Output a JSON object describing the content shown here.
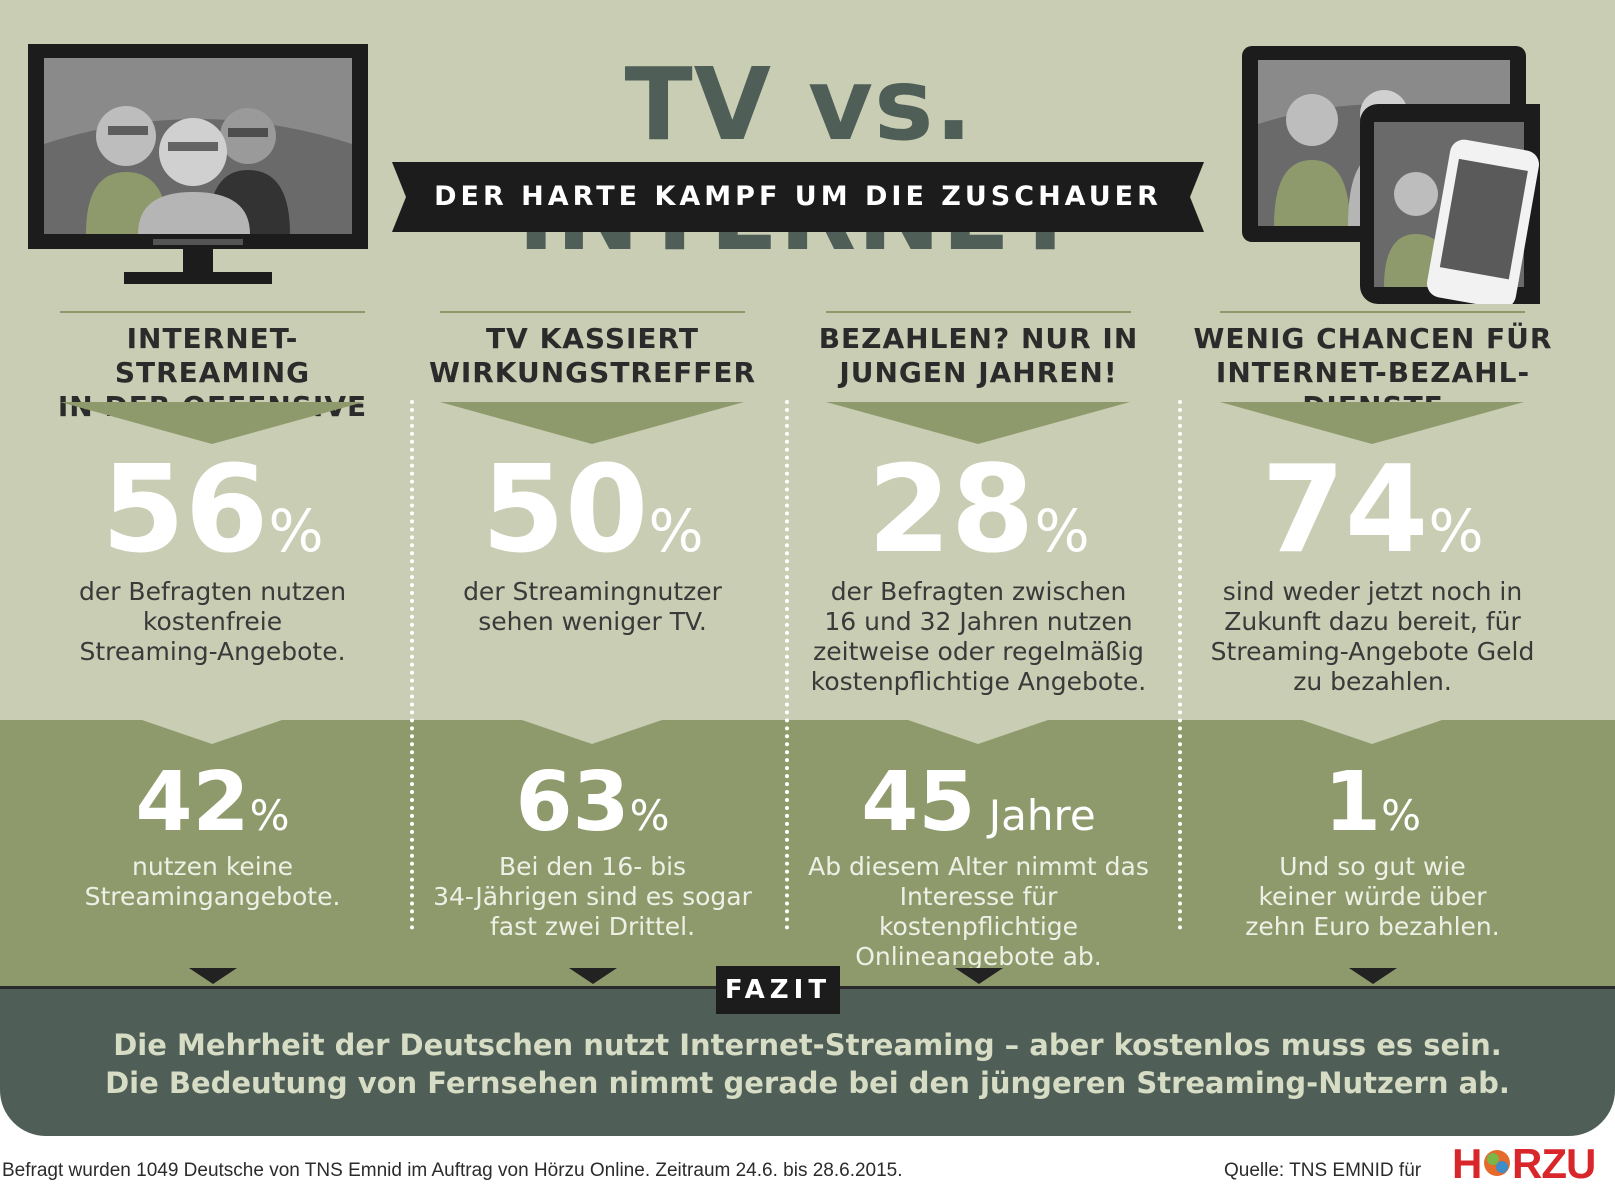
{
  "header": {
    "title": "TV vs. INTERNET",
    "subtitle": "DER HARTE KAMPF UM DIE ZUSCHAUER"
  },
  "columns": [
    {
      "heading": "INTERNET-STREAMING\nIN DER OFFENSIVE",
      "stat_value": "56",
      "stat_unit": "%",
      "stat_desc": "der Befragten nutzen\nkostenfreie\nStreaming-Angebote.",
      "sub_value": "42",
      "sub_unit": "%",
      "sub_desc": "nutzen keine\nStreamingangebote."
    },
    {
      "heading": "TV KASSIERT\nWIRKUNGSTREFFER",
      "stat_value": "50",
      "stat_unit": "%",
      "stat_desc": "der Streamingnutzer\nsehen weniger TV.",
      "sub_value": "63",
      "sub_unit": "%",
      "sub_desc": "Bei den 16- bis\n34-Jährigen sind es sogar\nfast zwei Drittel."
    },
    {
      "heading": "BEZAHLEN? NUR IN\nJUNGEN JAHREN!",
      "stat_value": "28",
      "stat_unit": "%",
      "stat_desc": "der Befragten zwischen\n16 und 32 Jahren nutzen\nzeitweise oder regelmäßig\nkostenpflichtige Angebote.",
      "sub_value": "45",
      "sub_unit": " Jahre",
      "sub_desc": "Ab diesem Alter nimmt das\nInteresse für kostenpflichtige\nOnlineangebote ab."
    },
    {
      "heading": "WENIG CHANCEN FÜR\nINTERNET-BEZAHL-DIENSTE",
      "stat_value": "74",
      "stat_unit": "%",
      "stat_desc": "sind weder jetzt noch in\nZukunft dazu bereit, für\nStreaming-Angebote Geld\nzu bezahlen.",
      "sub_value": "1",
      "sub_unit": "%",
      "sub_desc": "Und so gut wie\nkeiner würde über\nzehn Euro bezahlen."
    }
  ],
  "fazit": {
    "label": "FAZIT",
    "text": "Die Mehrheit der Deutschen nutzt Internet-Streaming – aber kostenlos muss es sein.\nDie Bedeutung von Fernsehen nimmt gerade bei den jüngeren Streaming-Nutzern ab."
  },
  "footer": {
    "note": "Befragt wurden 1049 Deutsche von TNS Emnid im Auftrag von Hörzu Online. Zeitraum 24.6. bis 28.6.2015.",
    "source": "Quelle: TNS EMNID für",
    "logo_text": "HÖRZU"
  },
  "colors": {
    "light_bg": "#c8cdb3",
    "olive": "#8f9a6c",
    "dark_slate": "#4f5f58",
    "black": "#1c1c1c",
    "logo_red": "#d9262b"
  }
}
